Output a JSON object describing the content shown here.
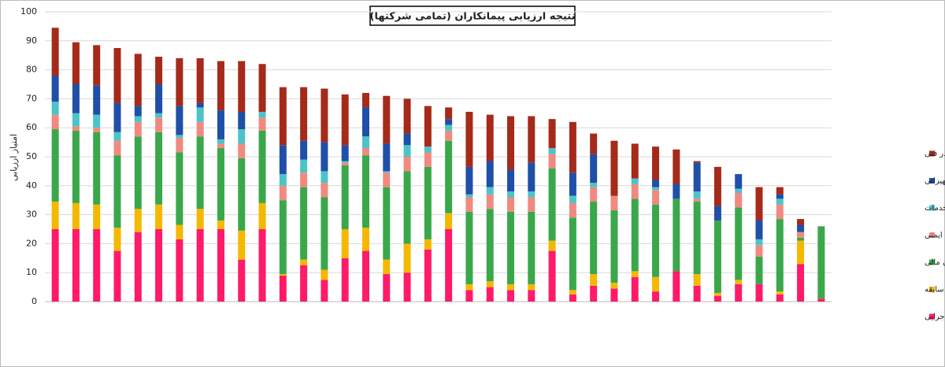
{
  "chart_data": {
    "type": "stacked_bar",
    "title": "نتیجه ارزیابی پیمانکاران (تمامی شرکتها)",
    "y_label": "امتیاز ارزیابی",
    "categories": [
      null,
      null,
      null,
      null,
      null,
      null,
      null,
      null,
      null,
      null,
      null,
      null,
      null,
      null,
      null,
      null,
      null,
      null,
      null,
      null,
      null,
      null,
      null,
      null,
      null,
      null,
      null,
      null,
      null,
      null,
      null,
      null,
      null,
      null,
      null,
      null,
      null,
      null
    ],
    "ylim": [
      0,
      100
    ],
    "yticks": [
      0,
      10,
      20,
      30,
      40,
      50,
      60,
      70,
      80,
      90,
      100
    ],
    "grid": true,
    "legend": "right",
    "series": [
      {
        "name": "سابقه اجرایی",
        "color": "#ff1a6a",
        "values": [
          25,
          25,
          25,
          17.5,
          24,
          25,
          21.5,
          25,
          25,
          14.5,
          25,
          9,
          12.5,
          7.5,
          15,
          17.5,
          9.5,
          10,
          18,
          25,
          4,
          5,
          4,
          4,
          17.5,
          2.5,
          5.5,
          4.5,
          8.5,
          3.5,
          10.5,
          5.5,
          2,
          6,
          6,
          2.5,
          13,
          1
        ]
      },
      {
        "name": "حسن سابقه",
        "color": "#f5b800",
        "values": [
          9.5,
          9,
          8.5,
          8,
          8,
          8.5,
          5,
          7,
          3,
          10,
          9,
          0.5,
          2,
          3.5,
          10,
          8,
          5,
          10,
          3.5,
          5.5,
          2,
          2,
          2,
          2,
          3.5,
          1.5,
          4,
          2,
          2,
          5,
          0,
          4,
          1,
          1.5,
          0,
          1,
          8,
          0
        ]
      },
      {
        "name": "توان مالی",
        "color": "#3aa84a",
        "values": [
          25,
          25,
          25,
          25,
          25,
          25,
          25,
          25,
          25,
          25,
          25,
          25.5,
          25,
          25,
          22,
          25,
          25,
          25,
          25,
          25,
          25,
          25,
          25,
          25,
          25,
          25,
          25,
          25,
          25,
          25,
          25,
          25,
          25,
          25,
          9.5,
          25,
          1,
          25
        ]
      },
      {
        "name": "صلاحیت ایمنی",
        "color": "#f08a80",
        "values": [
          5,
          1.5,
          1.5,
          5,
          5,
          5,
          5,
          5,
          1.5,
          5,
          4.5,
          5,
          5,
          5,
          1,
          2.5,
          5,
          5,
          5,
          3.5,
          5,
          5,
          5,
          5,
          5,
          5,
          5,
          5,
          5,
          5,
          0,
          1,
          0,
          5,
          4,
          5,
          2,
          0
        ]
      },
      {
        "name": "تضمین کیفیت خدمات",
        "color": "#4bc4c8",
        "values": [
          4.5,
          4.5,
          4.5,
          3,
          2,
          1.5,
          1,
          5,
          1.5,
          5,
          2,
          4,
          4.5,
          4,
          0.5,
          4,
          0.5,
          4,
          2,
          2,
          1,
          2.5,
          2,
          2,
          2,
          2.5,
          1.5,
          0,
          2,
          1,
          0,
          2.5,
          0,
          1.5,
          2,
          2,
          0,
          0
        ]
      },
      {
        "name": "توان تجهیزاتی",
        "color": "#1f4fa8",
        "values": [
          9,
          10,
          10,
          10,
          3.5,
          10,
          10,
          1.5,
          10,
          6,
          0,
          10,
          6.5,
          10,
          5.5,
          10,
          9.5,
          4,
          0,
          2,
          9.5,
          9,
          7.5,
          10,
          0,
          8,
          10,
          0,
          0,
          2.5,
          5,
          10,
          5,
          5,
          6.5,
          1.5,
          2.5,
          0
        ]
      },
      {
        "name": "کیفیت کادر فنی",
        "color": "#a52a1a",
        "values": [
          16.5,
          14.5,
          14,
          19,
          18,
          9.5,
          16.5,
          15.5,
          17,
          17.5,
          16.5,
          20,
          18.5,
          18.5,
          17.5,
          5,
          16.5,
          12,
          14,
          4,
          19,
          16,
          18.5,
          16,
          10,
          17.5,
          7,
          19,
          12,
          11.5,
          12,
          0.5,
          13.5,
          0,
          11.5,
          2.5,
          2,
          0
        ]
      }
    ]
  }
}
